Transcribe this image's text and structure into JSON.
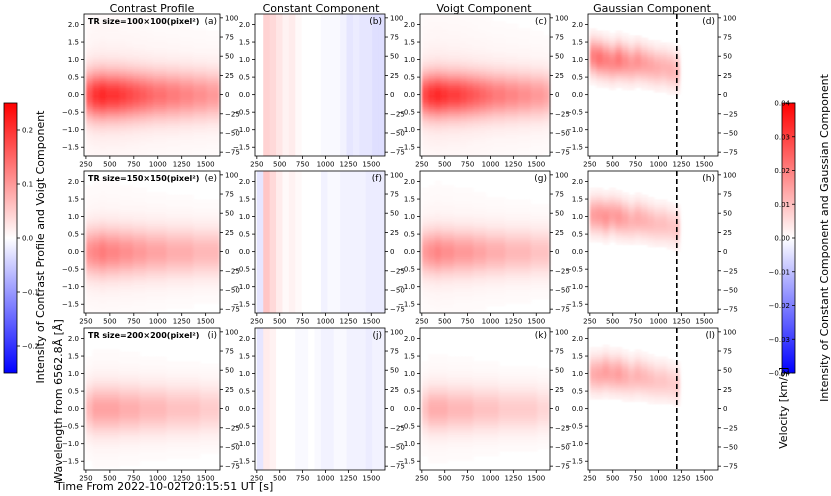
{
  "chart_data": {
    "type": "heatmap",
    "column_titles": [
      "Contrast Profile",
      "Constant Component",
      "Voigt Component",
      "Gaussian Component"
    ],
    "row_labels": [
      "TR size=100×100(pixel²)",
      "TR size=150×150(pixel²)",
      "TR size=200×200(pixel²)"
    ],
    "panel_letters": [
      [
        "(a)",
        "(b)",
        "(c)",
        "(d)"
      ],
      [
        "(e)",
        "(f)",
        "(g)",
        "(h)"
      ],
      [
        "(i)",
        "(j)",
        "(k)",
        "(l)"
      ]
    ],
    "xlabel": "Time From 2022-10-02T20:15:51 UT [s]",
    "ylabel": "Wavelength from 6562.8Å [Å]",
    "y2label": "Velocity [km/s]",
    "x_range": [
      230,
      1650
    ],
    "x_ticks": [
      250,
      500,
      750,
      1000,
      1250,
      1500
    ],
    "y_range": [
      -1.75,
      2.3
    ],
    "y_ticks": [
      -1.5,
      -1.0,
      -0.5,
      0.0,
      0.5,
      1.0,
      1.5,
      2.0
    ],
    "y_tick_labels": [
      "−1.5",
      "−1.0",
      "−0.5",
      "0.0",
      "0.5",
      "1.0",
      "1.5",
      "2.0"
    ],
    "v_range": [
      -80,
      105
    ],
    "v_ticks": [
      -75,
      -50,
      -25,
      0,
      25,
      50,
      75,
      100
    ],
    "v_tick_labels": [
      "−75",
      "−50",
      "−25",
      "0",
      "25",
      "50",
      "75",
      "100"
    ],
    "vline_time": 1200,
    "colorbar_left": {
      "label": "Intensity of Contrast Profile and Voigt Component",
      "range": [
        -0.25,
        0.25
      ],
      "ticks": [
        -0.2,
        -0.1,
        0.0,
        0.1,
        0.2
      ],
      "tick_labels": [
        "−0.2",
        "−0.1",
        "0.0",
        "0.1",
        "0.2"
      ]
    },
    "colorbar_right": {
      "label": "Intensity of Constant Component and Gaussian Component",
      "range": [
        -0.04,
        0.04
      ],
      "ticks": [
        -0.04,
        -0.03,
        -0.02,
        -0.01,
        0.0,
        0.01,
        0.02,
        0.03,
        0.04
      ],
      "tick_labels": [
        "−0.04",
        "−0.03",
        "−0.02",
        "−0.01",
        "0.00",
        "0.01",
        "0.02",
        "0.03",
        "0.04"
      ]
    },
    "time_bins": [
      250,
      320,
      390,
      460,
      530,
      600,
      670,
      740,
      810,
      880,
      950,
      1020,
      1090,
      1160,
      1230,
      1300,
      1370,
      1440,
      1510,
      1580,
      1640
    ],
    "contrast_peak": [
      [
        0.17,
        0.2,
        0.21,
        0.2,
        0.2,
        0.19,
        0.18,
        0.17,
        0.16,
        0.15,
        0.14,
        0.14,
        0.13,
        0.13,
        0.12,
        0.12,
        0.11,
        0.11,
        0.1,
        0.1
      ],
      [
        0.11,
        0.12,
        0.13,
        0.12,
        0.12,
        0.11,
        0.11,
        0.1,
        0.1,
        0.09,
        0.09,
        0.09,
        0.08,
        0.08,
        0.08,
        0.08,
        0.07,
        0.07,
        0.07,
        0.07
      ],
      [
        0.07,
        0.09,
        0.09,
        0.09,
        0.09,
        0.08,
        0.08,
        0.08,
        0.07,
        0.07,
        0.07,
        0.07,
        0.06,
        0.06,
        0.06,
        0.06,
        0.06,
        0.05,
        0.05,
        0.05
      ]
    ],
    "constant_values": [
      [
        0.0,
        0.007,
        0.006,
        0.004,
        0.002,
        0.003,
        0.001,
        0.0,
        0.0,
        0.0,
        -0.001,
        -0.001,
        -0.001,
        -0.002,
        -0.004,
        -0.003,
        -0.004,
        -0.004,
        -0.005,
        -0.005
      ],
      [
        -0.004,
        0.009,
        0.006,
        0.003,
        0.001,
        0.002,
        0.001,
        0.0,
        0.0,
        0.0,
        -0.002,
        -0.001,
        -0.001,
        -0.002,
        -0.002,
        -0.002,
        -0.002,
        -0.003,
        -0.003,
        -0.003
      ],
      [
        -0.004,
        0.003,
        0.002,
        0.0,
        0.0,
        0.0,
        -0.001,
        -0.001,
        0.0,
        -0.001,
        -0.002,
        -0.002,
        -0.001,
        -0.001,
        -0.002,
        -0.002,
        -0.002,
        -0.003,
        -0.002,
        -0.002
      ]
    ],
    "voigt_peak": [
      [
        0.18,
        0.2,
        0.21,
        0.2,
        0.19,
        0.19,
        0.18,
        0.17,
        0.16,
        0.15,
        0.14,
        0.13,
        0.13,
        0.12,
        0.12,
        0.11,
        0.11,
        0.1,
        0.1,
        0.09
      ],
      [
        0.1,
        0.11,
        0.12,
        0.11,
        0.11,
        0.1,
        0.1,
        0.1,
        0.09,
        0.09,
        0.08,
        0.08,
        0.08,
        0.07,
        0.07,
        0.07,
        0.07,
        0.06,
        0.06,
        0.06
      ],
      [
        0.06,
        0.08,
        0.08,
        0.08,
        0.07,
        0.07,
        0.07,
        0.07,
        0.06,
        0.06,
        0.06,
        0.06,
        0.05,
        0.05,
        0.05,
        0.05,
        0.05,
        0.05,
        0.04,
        0.04
      ]
    ],
    "gaussian_bins": [
      250,
      320,
      390,
      460,
      530,
      600,
      670,
      740,
      810,
      880,
      950,
      1020,
      1090,
      1160,
      1230
    ],
    "gaussian_amp": [
      [
        0.02,
        0.022,
        0.02,
        0.019,
        0.021,
        0.018,
        0.016,
        0.017,
        0.015,
        0.014,
        0.013,
        0.012,
        0.012,
        0.011
      ],
      [
        0.015,
        0.016,
        0.017,
        0.015,
        0.016,
        0.014,
        0.012,
        0.013,
        0.012,
        0.011,
        0.01,
        0.01,
        0.009,
        0.009
      ],
      [
        0.013,
        0.014,
        0.015,
        0.014,
        0.015,
        0.013,
        0.011,
        0.012,
        0.011,
        0.01,
        0.009,
        0.009,
        0.008,
        0.008
      ]
    ],
    "gaussian_center": [
      [
        1.1,
        1.05,
        1.0,
        0.95,
        1.0,
        0.95,
        0.9,
        0.95,
        0.9,
        0.85,
        0.8,
        0.8,
        0.75,
        0.7
      ],
      [
        1.05,
        1.05,
        1.0,
        1.05,
        1.0,
        0.95,
        0.9,
        0.95,
        0.9,
        0.85,
        0.8,
        0.8,
        0.75,
        0.7
      ],
      [
        1.0,
        1.0,
        1.05,
        1.0,
        1.0,
        0.95,
        0.9,
        0.95,
        0.9,
        0.85,
        0.8,
        0.8,
        0.75,
        0.7
      ]
    ],
    "gaussian_width": 0.35,
    "voigt_width": 0.42,
    "contrast_width": 0.45
  }
}
